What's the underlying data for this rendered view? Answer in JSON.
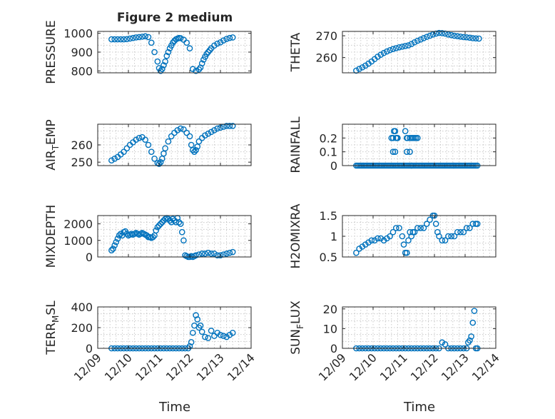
{
  "figure": {
    "title": "Figure 2 medium",
    "xlabel": "Time",
    "xticks": [
      "12/09",
      "12/10",
      "12/11",
      "12/12",
      "12/13",
      "12/14"
    ],
    "marker_color": "#0072BD",
    "grid": "minor-dotted"
  },
  "chart_data": [
    {
      "type": "scatter",
      "ylabel": "PRESSURE",
      "ylim": [
        790,
        1010
      ],
      "yticks": [
        800,
        900,
        1000
      ],
      "xlim": [
        9.0,
        14.0
      ],
      "x": [
        9.45,
        9.55,
        9.65,
        9.75,
        9.85,
        9.95,
        10.05,
        10.15,
        10.25,
        10.35,
        10.45,
        10.55,
        10.65,
        10.75,
        10.85,
        10.95,
        11.0,
        11.05,
        11.1,
        11.15,
        11.2,
        11.25,
        11.3,
        11.35,
        11.4,
        11.45,
        11.5,
        11.55,
        11.6,
        11.65,
        11.7,
        11.8,
        11.9,
        12.0,
        12.1,
        12.2,
        12.3,
        12.35,
        12.4,
        12.45,
        12.5,
        12.55,
        12.6,
        12.65,
        12.7,
        12.8,
        12.9,
        13.0,
        13.1,
        13.2,
        13.3,
        13.4
      ],
      "y": [
        968,
        968,
        968,
        968,
        968,
        969,
        972,
        975,
        978,
        980,
        982,
        984,
        980,
        950,
        900,
        850,
        815,
        800,
        810,
        830,
        850,
        880,
        900,
        920,
        935,
        950,
        960,
        968,
        972,
        975,
        974,
        966,
        950,
        920,
        810,
        800,
        808,
        818,
        840,
        860,
        875,
        890,
        900,
        910,
        920,
        935,
        945,
        952,
        962,
        970,
        975,
        978
      ],
      "series": []
    },
    {
      "type": "scatter",
      "ylabel": "THETA",
      "ylim": [
        253,
        272
      ],
      "yticks": [
        260,
        270
      ],
      "xlim": [
        9.0,
        14.0
      ],
      "x": [
        9.45,
        9.55,
        9.65,
        9.75,
        9.85,
        9.95,
        10.05,
        10.15,
        10.25,
        10.35,
        10.45,
        10.55,
        10.65,
        10.75,
        10.85,
        10.95,
        11.05,
        11.15,
        11.25,
        11.35,
        11.45,
        11.55,
        11.65,
        11.75,
        11.85,
        11.95,
        12.05,
        12.15,
        12.25,
        12.35,
        12.45,
        12.55,
        12.65,
        12.75,
        12.85,
        12.95,
        13.05,
        13.15,
        13.25,
        13.35,
        13.45
      ],
      "y": [
        254,
        254.8,
        255.5,
        256.3,
        257.2,
        258.2,
        259.3,
        260.4,
        261.3,
        262.1,
        262.8,
        263.4,
        263.9,
        264.3,
        264.7,
        265.0,
        265.3,
        265.6,
        266.2,
        267.0,
        267.7,
        268.3,
        268.9,
        269.5,
        270.0,
        270.6,
        271.0,
        271.3,
        271.2,
        271.0,
        270.6,
        270.3,
        270.0,
        269.8,
        269.6,
        269.4,
        269.3,
        269.1,
        268.9,
        268.8,
        268.7
      ],
      "series": []
    },
    {
      "type": "scatter",
      "ylabel": "AIR_TEMP",
      "ylim": [
        248,
        272
      ],
      "yticks": [
        250,
        260
      ],
      "xlim": [
        9.0,
        14.0
      ],
      "x": [
        9.45,
        9.55,
        9.65,
        9.75,
        9.85,
        9.95,
        10.05,
        10.15,
        10.25,
        10.35,
        10.45,
        10.55,
        10.65,
        10.75,
        10.85,
        10.95,
        11.0,
        11.05,
        11.1,
        11.15,
        11.2,
        11.3,
        11.4,
        11.5,
        11.6,
        11.7,
        11.8,
        11.9,
        12.0,
        12.05,
        12.1,
        12.15,
        12.2,
        12.25,
        12.3,
        12.4,
        12.5,
        12.6,
        12.7,
        12.8,
        12.9,
        13.0,
        13.1,
        13.2,
        13.3,
        13.4
      ],
      "y": [
        251,
        252,
        253,
        254.5,
        256,
        258,
        260,
        261.5,
        263,
        264,
        264.5,
        263,
        260,
        256,
        252,
        249.5,
        249,
        250,
        252,
        255,
        258,
        262,
        265,
        267,
        268.5,
        269.5,
        269,
        267,
        265,
        260,
        257,
        256,
        257,
        259,
        262,
        264,
        265.5,
        266.5,
        267.5,
        268.5,
        269.5,
        270,
        270.5,
        271,
        271,
        271
      ],
      "series": []
    },
    {
      "type": "scatter",
      "ylabel": "RAINFALL",
      "ylim": [
        0,
        0.3
      ],
      "yticks": [
        0,
        0.1,
        0.2
      ],
      "xlim": [
        9.0,
        14.0
      ],
      "x": [
        9.45,
        9.5,
        9.55,
        9.6,
        9.65,
        9.7,
        9.75,
        9.8,
        9.85,
        9.9,
        9.95,
        10.0,
        10.05,
        10.1,
        10.15,
        10.2,
        10.25,
        10.3,
        10.35,
        10.4,
        10.45,
        10.5,
        10.55,
        10.6,
        10.65,
        10.7,
        10.75,
        10.8,
        10.85,
        10.9,
        10.95,
        11.0,
        11.05,
        11.1,
        11.15,
        11.2,
        11.25,
        11.3,
        11.35,
        11.4,
        11.45,
        11.5,
        11.55,
        11.6,
        11.65,
        11.7,
        11.75,
        11.8,
        11.85,
        11.9,
        11.95,
        12.0,
        12.05,
        12.1,
        12.15,
        12.2,
        12.25,
        12.3,
        12.35,
        12.4,
        12.45,
        12.5,
        12.55,
        12.6,
        12.65,
        12.7,
        12.75,
        12.8,
        12.85,
        12.9,
        12.95,
        13.0,
        13.05,
        13.1,
        13.15,
        13.2,
        13.25,
        13.3,
        13.35,
        13.4,
        10.6,
        10.65,
        10.68,
        10.72,
        10.75,
        10.78,
        10.8,
        10.65,
        10.72,
        11.05,
        11.1,
        11.12,
        11.2,
        11.25,
        11.3,
        11.35,
        11.4,
        11.45,
        11.1,
        11.2,
        11.25
      ],
      "y": [
        0,
        0,
        0,
        0,
        0,
        0,
        0,
        0,
        0,
        0,
        0,
        0,
        0,
        0,
        0,
        0,
        0,
        0,
        0,
        0,
        0,
        0,
        0,
        0,
        0,
        0,
        0,
        0,
        0,
        0,
        0,
        0,
        0,
        0,
        0,
        0,
        0,
        0,
        0,
        0,
        0,
        0,
        0,
        0,
        0,
        0,
        0,
        0,
        0,
        0,
        0,
        0,
        0,
        0,
        0,
        0,
        0,
        0,
        0,
        0,
        0,
        0,
        0,
        0,
        0,
        0,
        0,
        0,
        0,
        0,
        0,
        0,
        0,
        0,
        0,
        0,
        0,
        0,
        0,
        0,
        0.2,
        0.2,
        0.25,
        0.25,
        0.2,
        0.2,
        0.2,
        0.1,
        0.1,
        0.25,
        0.2,
        0.2,
        0.2,
        0.2,
        0.2,
        0.2,
        0.2,
        0.2,
        0.1,
        0.1,
        0
      ],
      "series": []
    },
    {
      "type": "scatter",
      "ylabel": "MIXDEPTH",
      "ylim": [
        0,
        2500
      ],
      "yticks": [
        0,
        1000,
        2000
      ],
      "xlim": [
        9.0,
        14.0
      ],
      "x": [
        9.45,
        9.5,
        9.55,
        9.6,
        9.65,
        9.7,
        9.75,
        9.8,
        9.85,
        9.9,
        9.95,
        10.0,
        10.05,
        10.1,
        10.15,
        10.2,
        10.25,
        10.3,
        10.35,
        10.4,
        10.45,
        10.5,
        10.55,
        10.6,
        10.65,
        10.7,
        10.75,
        10.8,
        10.85,
        10.9,
        10.95,
        11.0,
        11.05,
        11.1,
        11.15,
        11.2,
        11.25,
        11.3,
        11.35,
        11.4,
        11.45,
        11.5,
        11.55,
        11.6,
        11.65,
        11.7,
        11.75,
        11.8,
        11.85,
        11.9,
        11.95,
        12.0,
        12.05,
        12.1,
        12.15,
        12.2,
        12.3,
        12.4,
        12.5,
        12.6,
        12.7,
        12.8,
        12.9,
        13.0,
        13.1,
        13.2,
        13.3,
        13.4
      ],
      "y": [
        400,
        500,
        700,
        900,
        1100,
        1300,
        1400,
        1300,
        1500,
        1550,
        1400,
        1300,
        1350,
        1400,
        1350,
        1400,
        1450,
        1400,
        1350,
        1400,
        1450,
        1400,
        1350,
        1300,
        1200,
        1200,
        1150,
        1200,
        1300,
        1600,
        1800,
        1900,
        2000,
        2100,
        2200,
        2300,
        2350,
        2300,
        2200,
        2100,
        2300,
        2200,
        2100,
        2350,
        2100,
        2000,
        1500,
        1000,
        100,
        50,
        0,
        0,
        50,
        0,
        50,
        100,
        150,
        200,
        200,
        250,
        200,
        200,
        100,
        100,
        150,
        200,
        250,
        300
      ],
      "series": []
    },
    {
      "type": "scatter",
      "ylabel": "H2OMIXRA",
      "ylim": [
        0.5,
        1.5
      ],
      "yticks": [
        0.5,
        1,
        1.5
      ],
      "xlim": [
        9.0,
        14.0
      ],
      "x": [
        9.45,
        9.55,
        9.65,
        9.75,
        9.85,
        9.95,
        10.05,
        10.15,
        10.25,
        10.35,
        10.45,
        10.55,
        10.65,
        10.75,
        10.85,
        10.95,
        11.0,
        11.05,
        11.1,
        11.15,
        11.2,
        11.25,
        11.3,
        11.35,
        11.45,
        11.55,
        11.65,
        11.75,
        11.85,
        11.95,
        12.0,
        12.05,
        12.1,
        12.15,
        12.25,
        12.35,
        12.45,
        12.55,
        12.65,
        12.75,
        12.85,
        12.95,
        13.05,
        13.15,
        13.25,
        13.35,
        13.4
      ],
      "y": [
        0.6,
        0.7,
        0.75,
        0.8,
        0.85,
        0.9,
        0.9,
        0.95,
        0.95,
        0.9,
        0.95,
        1.0,
        1.1,
        1.2,
        1.2,
        1.0,
        0.8,
        0.6,
        0.6,
        0.9,
        1.1,
        1.0,
        1.1,
        1.1,
        1.2,
        1.2,
        1.2,
        1.3,
        1.4,
        1.5,
        1.5,
        1.3,
        1.1,
        1.0,
        0.9,
        0.9,
        1.0,
        1.0,
        1.0,
        1.1,
        1.1,
        1.1,
        1.2,
        1.2,
        1.3,
        1.3,
        1.3
      ],
      "series": []
    },
    {
      "type": "scatter",
      "ylabel": "TERR_MSL",
      "ylim": [
        0,
        400
      ],
      "yticks": [
        0,
        200,
        400
      ],
      "xlim": [
        9.0,
        14.0
      ],
      "x": [
        9.45,
        9.55,
        9.65,
        9.75,
        9.85,
        9.95,
        10.05,
        10.15,
        10.25,
        10.35,
        10.45,
        10.55,
        10.65,
        10.75,
        10.85,
        10.95,
        11.05,
        11.15,
        11.25,
        11.35,
        11.45,
        11.55,
        11.65,
        11.75,
        11.85,
        11.95,
        12.0,
        12.05,
        12.1,
        12.15,
        12.2,
        12.25,
        12.3,
        12.35,
        12.4,
        12.5,
        12.6,
        12.7,
        12.8,
        12.9,
        13.0,
        13.1,
        13.2,
        13.3,
        13.4
      ],
      "y": [
        0,
        0,
        0,
        0,
        0,
        0,
        0,
        0,
        0,
        0,
        0,
        0,
        0,
        0,
        0,
        0,
        0,
        0,
        0,
        0,
        0,
        0,
        0,
        0,
        0,
        0,
        20,
        60,
        150,
        220,
        320,
        280,
        200,
        220,
        160,
        110,
        100,
        170,
        120,
        150,
        130,
        120,
        110,
        130,
        150
      ],
      "series": []
    },
    {
      "type": "scatter",
      "ylabel": "SUN_FLUX",
      "ylim": [
        0,
        21
      ],
      "yticks": [
        0,
        10,
        20
      ],
      "xlim": [
        9.0,
        14.0
      ],
      "x": [
        9.45,
        9.55,
        9.65,
        9.75,
        9.85,
        9.95,
        10.05,
        10.15,
        10.25,
        10.35,
        10.45,
        10.55,
        10.65,
        10.75,
        10.85,
        10.95,
        11.05,
        11.15,
        11.25,
        11.35,
        11.45,
        11.55,
        11.65,
        11.75,
        11.85,
        11.95,
        12.05,
        12.15,
        12.25,
        12.35,
        12.45,
        12.55,
        12.65,
        12.75,
        12.85,
        12.95,
        13.05,
        13.1,
        13.15,
        13.2,
        13.25,
        13.3,
        13.35,
        13.4
      ],
      "y": [
        0,
        0,
        0,
        0,
        0,
        0,
        0,
        0,
        0,
        0,
        0,
        0,
        0,
        0,
        0,
        0,
        0,
        0,
        0,
        0,
        0,
        0,
        0,
        0,
        0,
        0,
        0,
        0,
        3,
        2,
        0,
        0,
        0,
        0,
        0,
        0,
        0,
        3,
        4,
        6,
        13,
        19,
        0,
        0
      ],
      "series": []
    }
  ]
}
